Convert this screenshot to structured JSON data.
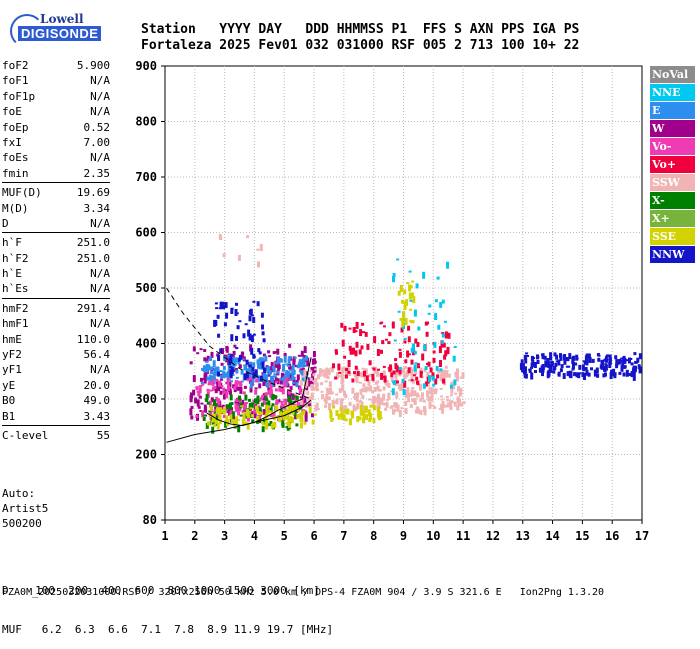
{
  "logo": {
    "line1": "Lowell",
    "line2": "DIGISONDE"
  },
  "header": {
    "labels": [
      "Station",
      "YYYY",
      "DAY",
      "DDD",
      "HHMMSS",
      "P1",
      "FFS",
      "S",
      "AXN",
      "PPS",
      "IGA",
      "PS"
    ],
    "values": [
      "Fortaleza",
      "2025",
      "Fev01",
      "032",
      "031000",
      "RSF",
      "005",
      "2",
      "713",
      "100",
      "10+",
      "22"
    ]
  },
  "params": [
    {
      "k": "foF2",
      "v": "5.900"
    },
    {
      "k": "foF1",
      "v": "N/A"
    },
    {
      "k": "foF1p",
      "v": "N/A"
    },
    {
      "k": "foE",
      "v": "N/A"
    },
    {
      "k": "foEp",
      "v": "0.52"
    },
    {
      "k": "fxI",
      "v": "7.00"
    },
    {
      "k": "foEs",
      "v": "N/A"
    },
    {
      "k": "fmin",
      "v": "2.35"
    },
    {
      "k": "MUF(D)",
      "v": "19.69"
    },
    {
      "k": "M(D)",
      "v": "3.34"
    },
    {
      "k": "D",
      "v": "N/A"
    },
    {
      "k": "h`F",
      "v": "251.0"
    },
    {
      "k": "h`F2",
      "v": "251.0"
    },
    {
      "k": "h`E",
      "v": "N/A"
    },
    {
      "k": "h`Es",
      "v": "N/A"
    },
    {
      "k": "hmF2",
      "v": "291.4"
    },
    {
      "k": "hmF1",
      "v": "N/A"
    },
    {
      "k": "hmE",
      "v": "110.0"
    },
    {
      "k": "yF2",
      "v": "56.4"
    },
    {
      "k": "yF1",
      "v": "N/A"
    },
    {
      "k": "yE",
      "v": "20.0"
    },
    {
      "k": "B0",
      "v": "49.0"
    },
    {
      "k": "B1",
      "v": "3.43"
    },
    {
      "k": "C-level",
      "v": "55"
    }
  ],
  "auto": {
    "l1": "Auto:",
    "l2": "Artist5",
    "l3": "500200"
  },
  "legend": [
    {
      "name": "NoVal",
      "color": "#8c8c8c"
    },
    {
      "name": "NNE",
      "color": "#00c8f0"
    },
    {
      "name": "E",
      "color": "#2e8ef0"
    },
    {
      "name": "W",
      "color": "#a0008c"
    },
    {
      "name": "Vo-",
      "color": "#f03cb4"
    },
    {
      "name": "Vo+",
      "color": "#f0003c"
    },
    {
      "name": "SSW",
      "color": "#f0b4b4"
    },
    {
      "name": "X-",
      "color": "#008000"
    },
    {
      "name": "X+",
      "color": "#78b43c"
    },
    {
      "name": "SSE",
      "color": "#d2d200"
    },
    {
      "name": "NNW",
      "color": "#1414c8"
    }
  ],
  "bottom": {
    "d_row": "D    100  200  400  600  800 1000 1500 3000 [km]",
    "muf_row": "MUF   6.2  6.3  6.6  7.1  7.8  8.9 11.9 19.7 [MHz]"
  },
  "footer": "FZA0M_2025032031000.RSF / 320fx256h 50 kHz 5.0 km / DPS-4 FZA0M 904 / 3.9 S 321.6 E   Ion2Png 1.3.20",
  "chart_data": {
    "type": "scatter",
    "x_ticks": [
      "1",
      "2",
      "3",
      "4",
      "5",
      "6",
      "7",
      "8",
      "9",
      "10",
      "11",
      "12",
      "13",
      "14",
      "15",
      "16",
      "17"
    ],
    "y_ticks": [
      "80",
      "200",
      "300",
      "400",
      "500",
      "600",
      "700",
      "800",
      "900"
    ],
    "xlim": [
      1,
      17
    ],
    "ylim": [
      80,
      900
    ],
    "grid": true,
    "clusters": [
      {
        "color_key": "W",
        "x": [
          1.8,
          6.0
        ],
        "y": [
          270,
          400
        ],
        "n": 260
      },
      {
        "color_key": "E",
        "x": [
          2.2,
          5.8
        ],
        "y": [
          330,
          380
        ],
        "n": 150
      },
      {
        "color_key": "Vo-",
        "x": [
          2.0,
          5.6
        ],
        "y": [
          270,
          340
        ],
        "n": 120
      },
      {
        "color_key": "X-",
        "x": [
          2.2,
          5.5
        ],
        "y": [
          250,
          310
        ],
        "n": 90
      },
      {
        "color_key": "SSE",
        "x": [
          2.4,
          6.0
        ],
        "y": [
          255,
          290
        ],
        "n": 110
      },
      {
        "color_key": "NNW",
        "x": [
          2.6,
          4.3
        ],
        "y": [
          340,
          480
        ],
        "n": 70
      },
      {
        "color_key": "SSW",
        "x": [
          5.5,
          11.0
        ],
        "y": [
          280,
          360
        ],
        "n": 320
      },
      {
        "color_key": "Vo+",
        "x": [
          6.5,
          10.5
        ],
        "y": [
          330,
          440
        ],
        "n": 120
      },
      {
        "color_key": "NNE",
        "x": [
          8.5,
          10.8
        ],
        "y": [
          300,
          560
        ],
        "n": 50
      },
      {
        "color_key": "SSE",
        "x": [
          6.5,
          8.2
        ],
        "y": [
          265,
          290
        ],
        "n": 50
      },
      {
        "color_key": "SSE",
        "x": [
          8.8,
          9.3
        ],
        "y": [
          440,
          520
        ],
        "n": 25
      },
      {
        "color_key": "NNW",
        "x": [
          12.9,
          16.9
        ],
        "y": [
          345,
          385
        ],
        "n": 180
      },
      {
        "color_key": "SSW",
        "x": [
          2.8,
          4.3
        ],
        "y": [
          545,
          600
        ],
        "n": 8
      }
    ],
    "trace_lower": {
      "x": [
        1.05,
        2.0,
        3.0,
        4.0,
        5.0,
        5.6,
        5.9
      ],
      "y": [
        222,
        236,
        245,
        258,
        270,
        285,
        298
      ]
    },
    "trace_upper_dashed": {
      "x": [
        1.05,
        1.6,
        2.5,
        3.5,
        4.5,
        5.9
      ],
      "y": [
        500,
        455,
        395,
        355,
        330,
        300
      ]
    },
    "trace_virtual": {
      "x": [
        2.4,
        2.8,
        3.2,
        3.6,
        4.0,
        4.4,
        4.8,
        5.2,
        5.6,
        5.9
      ],
      "y": [
        275,
        262,
        255,
        252,
        258,
        268,
        280,
        290,
        300,
        375
      ]
    }
  }
}
